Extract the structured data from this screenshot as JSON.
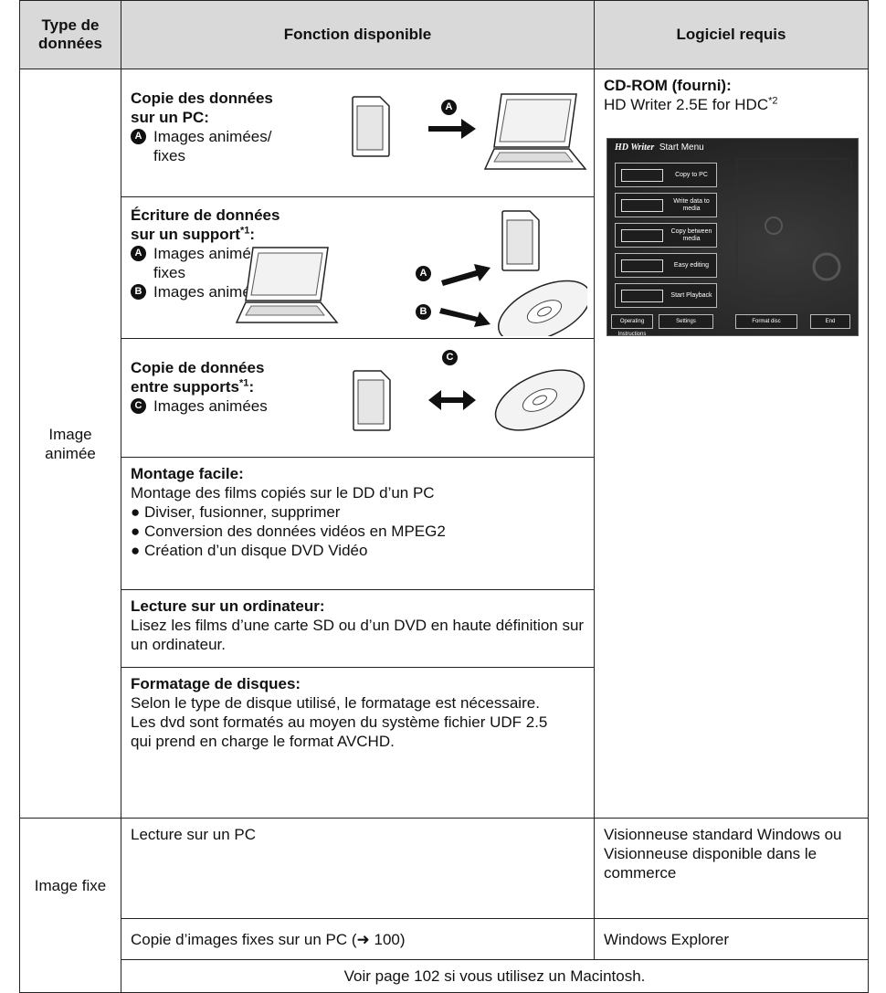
{
  "table": {
    "headers": [
      "Type de données",
      "Fonction disponible",
      "Logiciel requis"
    ],
    "rows": [
      {
        "type": "Image animée",
        "functions": [
          {
            "title_lines": [
              "Copie des données",
              "sur un PC:"
            ],
            "items": [
              {
                "marker": "A",
                "text": "Images animées/ fixes"
              }
            ],
            "diagram_markers": [
              "A"
            ]
          },
          {
            "title_lines": [
              "Écriture de données",
              "sur un support"
            ],
            "note": "*1",
            "suffix": ":",
            "items": [
              {
                "marker": "A",
                "text": "Images animées/ fixes"
              },
              {
                "marker": "B",
                "text": "Images animées"
              }
            ],
            "diagram_markers": [
              "A",
              "B"
            ]
          },
          {
            "title_lines": [
              "Copie de données",
              "entre supports"
            ],
            "note": "*1",
            "suffix": ":",
            "items": [
              {
                "marker": "C",
                "text": "Images animées"
              }
            ],
            "diagram_markers": [
              "C"
            ]
          },
          {
            "title": "Montage facile:",
            "text": "Montage des films copiés sur le DD d’un PC",
            "bullets": [
              "● Diviser, fusionner, supprimer",
              "● Conversion des données vidéos en MPEG2",
              "● Création d’un disque DVD Vidéo"
            ]
          },
          {
            "title": "Lecture sur un ordinateur:",
            "text": "Lisez les films d’une carte SD ou d’un DVD en haute définition sur un ordinateur."
          },
          {
            "title": "Formatage de disques:",
            "text": "Selon le type de disque utilisé, le formatage est nécessaire. Les dvd sont formatés au moyen du système fichier UDF 2.5 qui prend en charge le format AVCHD."
          }
        ],
        "software": {
          "title": "CD-ROM (fourni):",
          "name": "HD Writer 2.5E for HDC",
          "note": "*2",
          "screenshot": {
            "title": "HD Writer",
            "subtitle": "Start Menu",
            "buttons": [
              "Copy to PC",
              "Write data to media",
              "Copy between media",
              "Easy editing",
              "Start Playback"
            ],
            "bottom_buttons": [
              "Operating Instructions",
              "Settings",
              "Format disc",
              "End"
            ]
          }
        }
      },
      {
        "type": "Image fixe",
        "functions": [
          {
            "text": "Lecture sur un PC",
            "software": "Visionneuse standard Windows ou Visionneuse disponible dans le commerce"
          },
          {
            "text": "Copie d’images fixes sur un PC (➜ 100)",
            "software": "Windows Explorer"
          }
        ],
        "note": "Voir page 102 si vous utilisez un Macintosh."
      }
    ]
  }
}
